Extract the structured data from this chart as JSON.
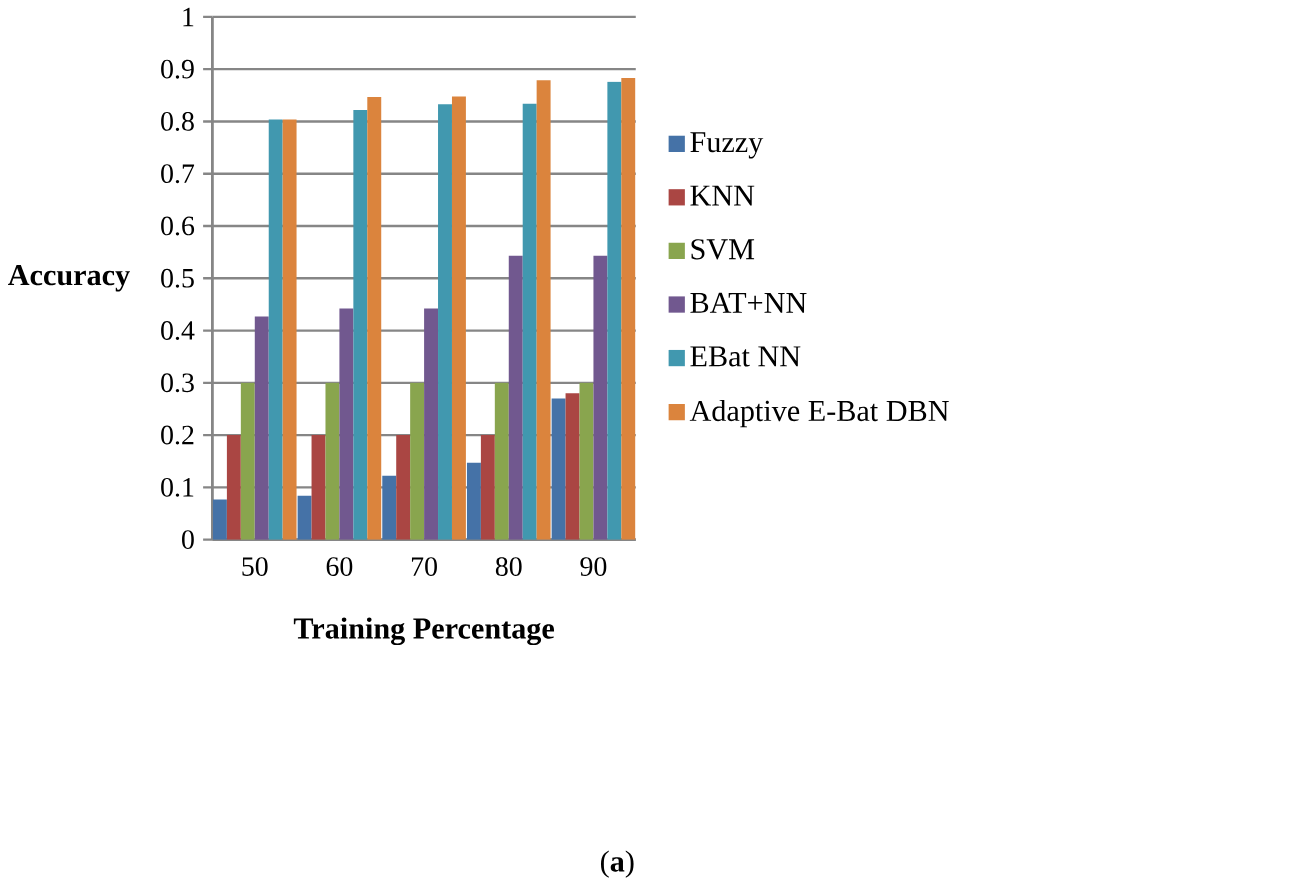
{
  "chart_data": {
    "type": "bar",
    "xlabel": "Training Percentage",
    "ylabel": "Accuracy",
    "annotations": [
      "(**a**)"
    ],
    "categories": [
      "50",
      "60",
      "70",
      "80",
      "90"
    ],
    "series": [
      {
        "name": "Fuzzy",
        "color": "#4572a7",
        "values": [
          0.077,
          0.084,
          0.122,
          0.147,
          0.27
        ]
      },
      {
        "name": "KNN",
        "color": "#aa4643",
        "values": [
          0.2,
          0.2,
          0.2,
          0.2,
          0.28
        ]
      },
      {
        "name": "SVM",
        "color": "#89a54e",
        "values": [
          0.3,
          0.3,
          0.3,
          0.3,
          0.3
        ]
      },
      {
        "name": "BAT+NN",
        "color": "#71588f",
        "values": [
          0.427,
          0.442,
          0.442,
          0.543,
          0.543
        ]
      },
      {
        "name": "EBat NN",
        "color": "#4198af",
        "values": [
          0.804,
          0.822,
          0.833,
          0.834,
          0.876
        ]
      },
      {
        "name": "Adaptive E-Bat DBN",
        "color": "#db843d",
        "values": [
          0.804,
          0.847,
          0.848,
          0.879,
          0.883
        ]
      }
    ],
    "ylim": [
      0,
      1
    ],
    "yticks": [
      0,
      0.1,
      0.2,
      0.3,
      0.4,
      0.5,
      0.6,
      0.7,
      0.8,
      0.9,
      1
    ],
    "grid": "y",
    "legend": "right"
  }
}
